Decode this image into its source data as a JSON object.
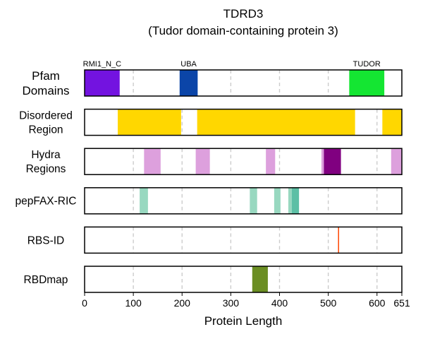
{
  "chart_data": {
    "type": "track",
    "title": "TDRD3",
    "subtitle": "(Tudor domain-containing protein 3)",
    "xlabel": "Protein Length",
    "xlim": [
      0,
      651
    ],
    "xticks": [
      0,
      100,
      200,
      300,
      400,
      500,
      600,
      651
    ],
    "grid_x": [
      100,
      200,
      300,
      400,
      500,
      600
    ],
    "tracks": [
      {
        "label": "Pfam\nDomains",
        "segments": [
          {
            "start": 0,
            "end": 72,
            "color": "#7313e0",
            "label": "RMI1_N_C"
          },
          {
            "start": 195,
            "end": 232,
            "color": "#0b45a8",
            "label": "UBA"
          },
          {
            "start": 543,
            "end": 615,
            "color": "#14e632",
            "label": "TUDOR"
          }
        ]
      },
      {
        "label": "Disordered\nRegion",
        "segments": [
          {
            "start": 68,
            "end": 198,
            "color": "#ffd700"
          },
          {
            "start": 231,
            "end": 555,
            "color": "#ffd700"
          },
          {
            "start": 611,
            "end": 651,
            "color": "#ffd700"
          }
        ]
      },
      {
        "label": "Hydra\nRegions",
        "segments": [
          {
            "start": 122,
            "end": 156,
            "color": "#dda0dd"
          },
          {
            "start": 228,
            "end": 257,
            "color": "#dda0dd"
          },
          {
            "start": 372,
            "end": 391,
            "color": "#dda0dd"
          },
          {
            "start": 486,
            "end": 491,
            "color": "#dda0dd"
          },
          {
            "start": 491,
            "end": 526,
            "color": "#800080"
          },
          {
            "start": 629,
            "end": 651,
            "color": "#dda0dd"
          }
        ]
      },
      {
        "label": "pepFAX-RIC",
        "segments": [
          {
            "start": 113,
            "end": 130,
            "color": "#98d8c0"
          },
          {
            "start": 339,
            "end": 354,
            "color": "#98d8c0"
          },
          {
            "start": 389,
            "end": 402,
            "color": "#98d8c0"
          },
          {
            "start": 418,
            "end": 425,
            "color": "#98d8c0"
          },
          {
            "start": 425,
            "end": 440,
            "color": "#5cbfa5"
          }
        ]
      },
      {
        "label": "RBS-ID",
        "segments": [
          {
            "start": 520,
            "end": 522,
            "color": "#ff4500"
          }
        ]
      },
      {
        "label": "RBDmap",
        "segments": [
          {
            "start": 344,
            "end": 376,
            "color": "#6b8e23"
          }
        ]
      }
    ]
  }
}
